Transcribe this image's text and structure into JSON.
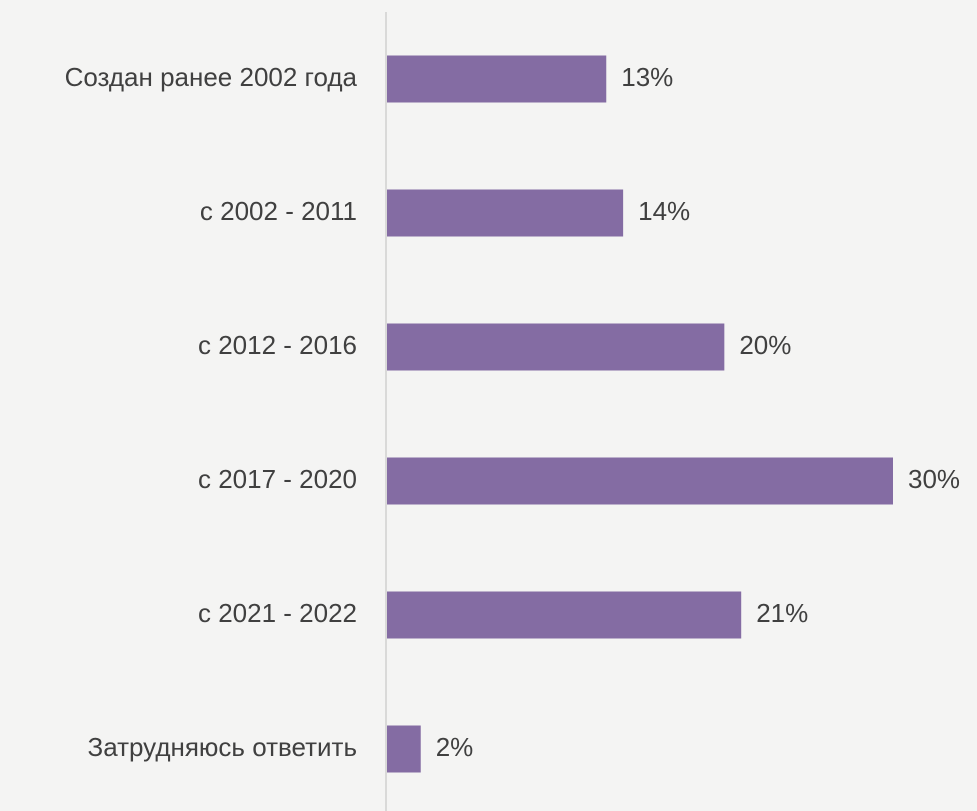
{
  "chart_data": {
    "type": "bar",
    "orientation": "horizontal",
    "categories": [
      "Создан ранее 2002 года",
      "с 2002 - 2011",
      "с 2012 - 2016",
      "с 2017 - 2020",
      "с 2021 - 2022",
      "Затрудняюсь ответить"
    ],
    "values": [
      13,
      14,
      20,
      30,
      21,
      2
    ],
    "value_labels": [
      "13%",
      "14%",
      "20%",
      "30%",
      "21%",
      "2%"
    ],
    "color": "#846ca3"
  }
}
